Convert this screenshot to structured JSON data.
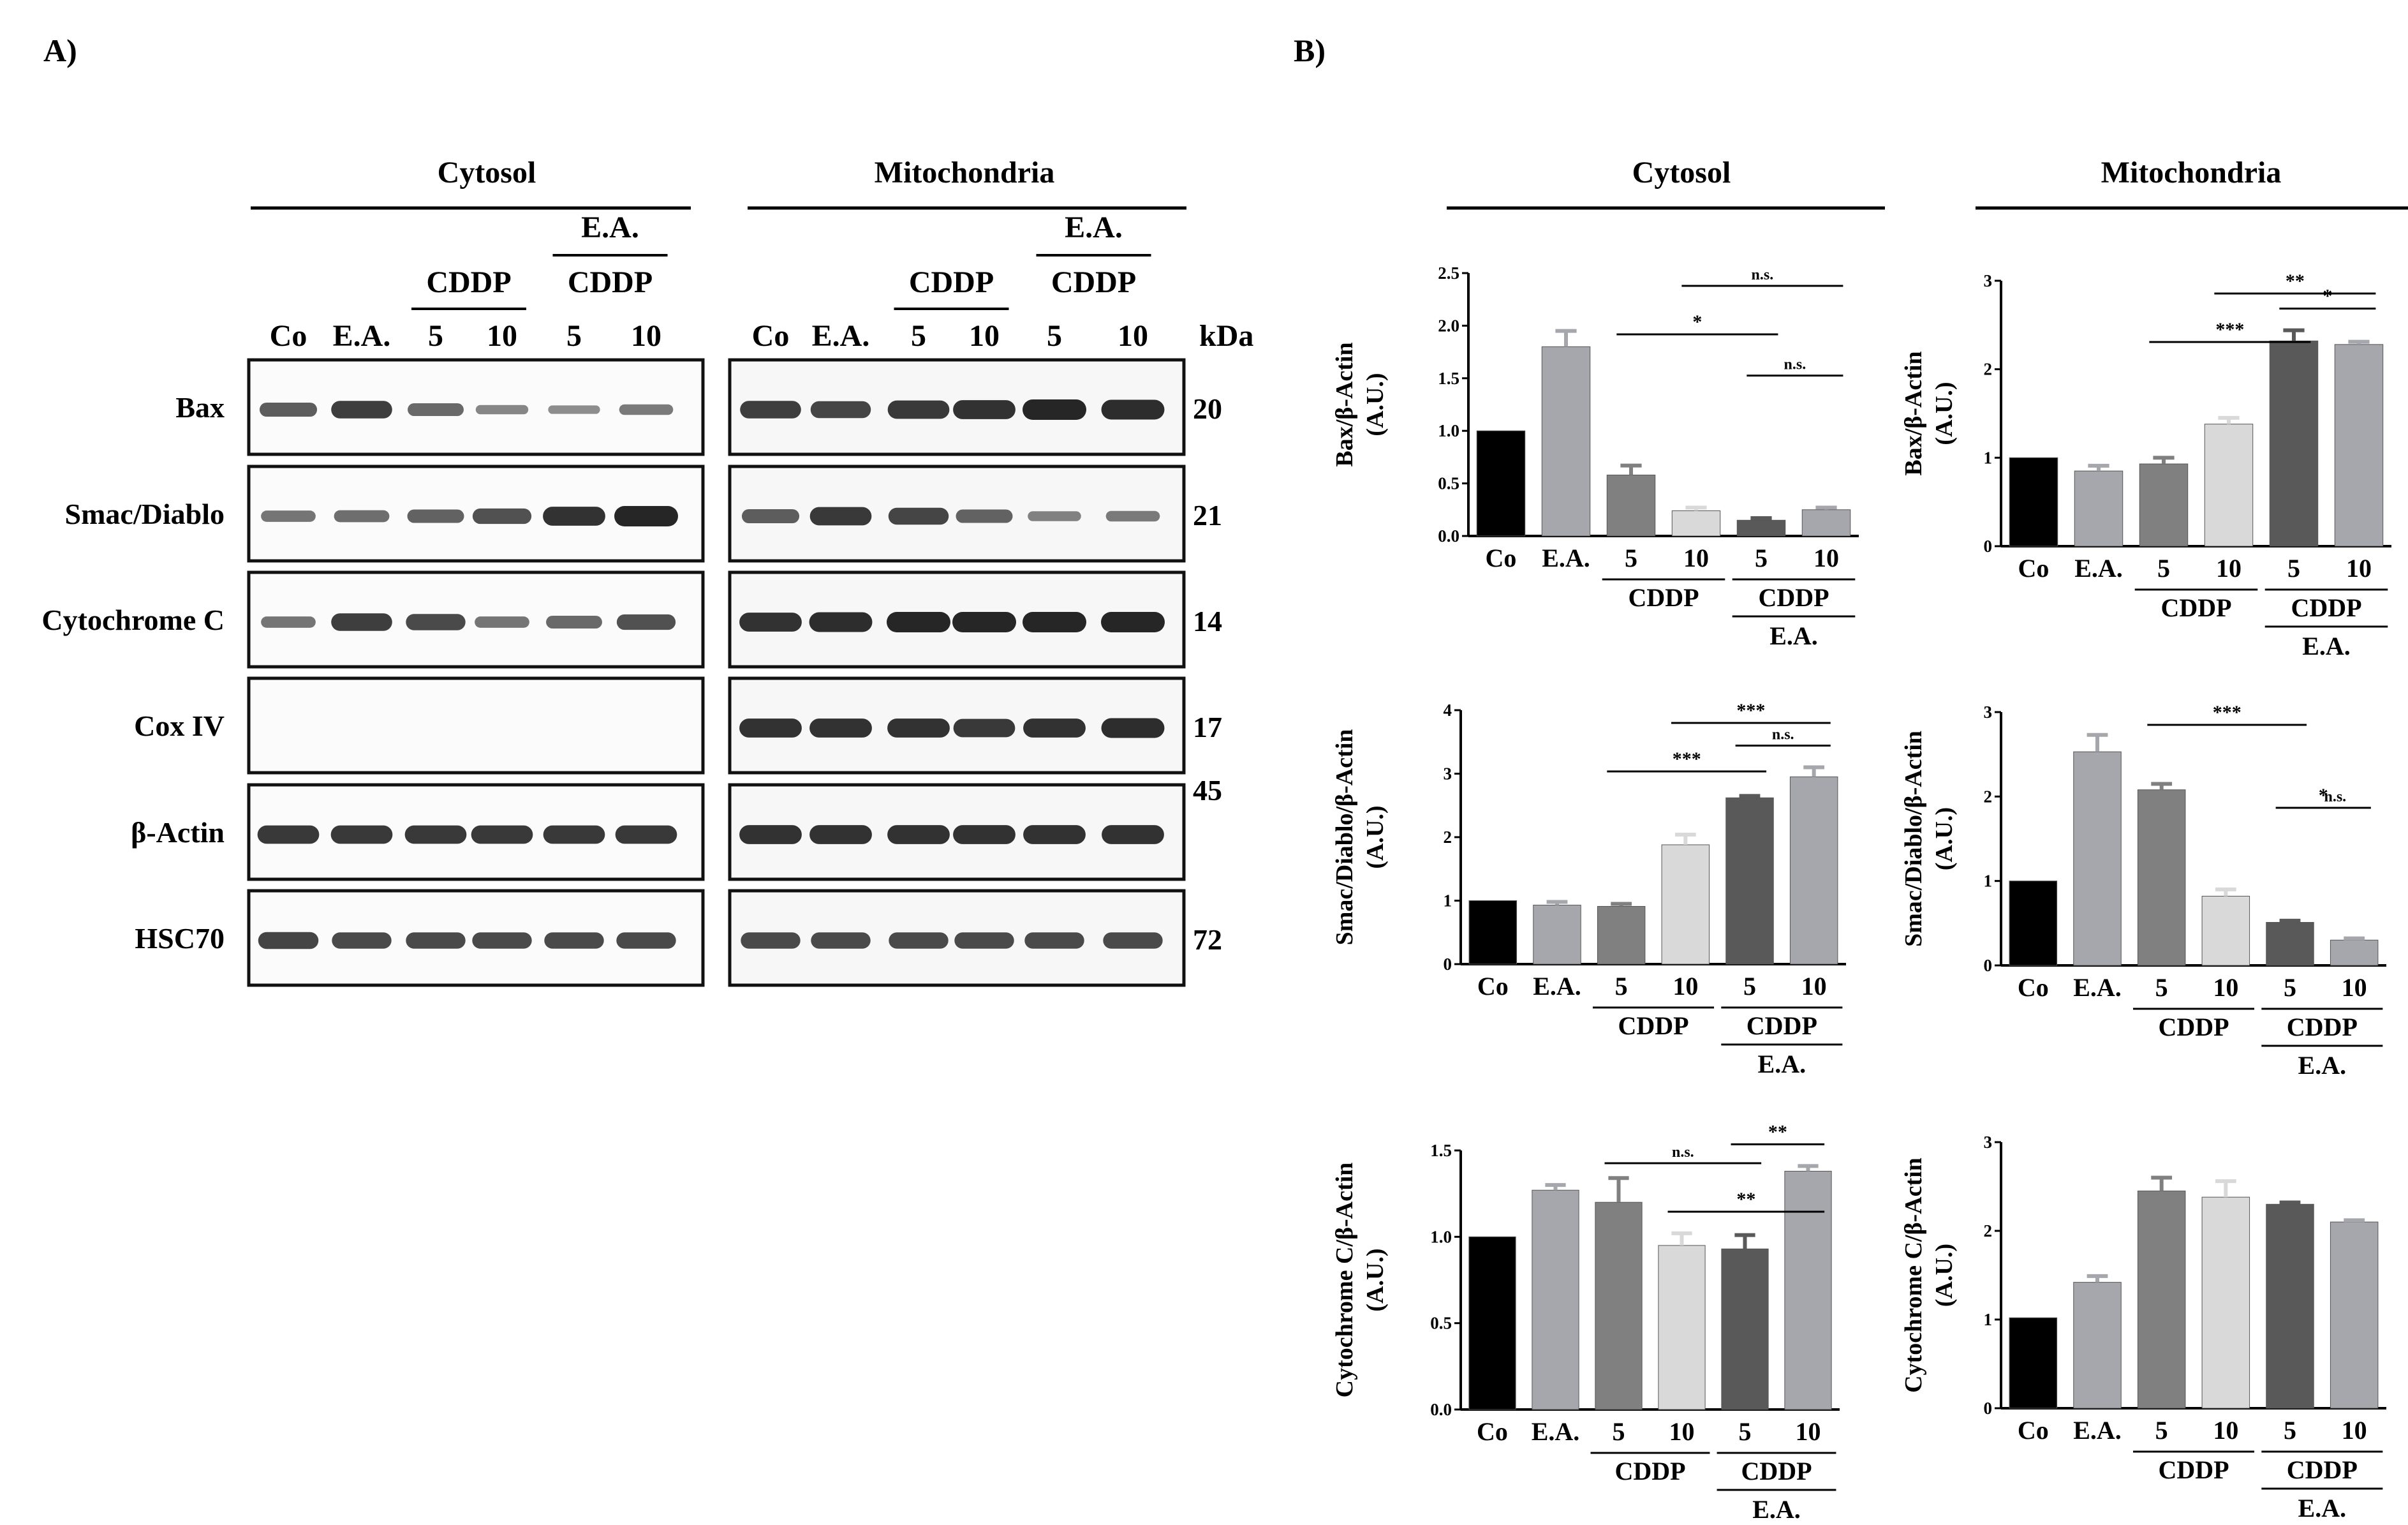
{
  "panels": {
    "a": "A)",
    "b": "B)"
  },
  "headers": {
    "cytosol": "Cytosol",
    "mito": "Mitochondria"
  },
  "blot": {
    "ea_label": "E.A.",
    "cddp_label": "CDDP",
    "lanes": [
      "Co",
      "E.A.",
      "5",
      "10",
      "5",
      "10"
    ],
    "kda_label": "kDa",
    "proteins": [
      {
        "name": "Bax",
        "kda": "20",
        "cyto": [
          0.55,
          0.8,
          0.45,
          0.2,
          0.15,
          0.3
        ],
        "mito": [
          0.8,
          0.75,
          0.85,
          0.9,
          1.0,
          0.95
        ]
      },
      {
        "name": "Smac/Diablo",
        "kda": "21",
        "cyto": [
          0.35,
          0.4,
          0.5,
          0.65,
          0.9,
          1.0
        ],
        "mito": [
          0.55,
          0.85,
          0.75,
          0.5,
          0.25,
          0.3
        ]
      },
      {
        "name": "Cytochrome C",
        "kda": "14",
        "cyto": [
          0.35,
          0.8,
          0.7,
          0.35,
          0.45,
          0.65
        ],
        "mito": [
          0.9,
          0.95,
          1.0,
          1.0,
          1.0,
          1.0
        ]
      },
      {
        "name": "Cox IV",
        "kda": "17",
        "cyto": [
          0,
          0,
          0,
          0,
          0,
          0
        ],
        "mito": [
          0.9,
          0.9,
          0.9,
          0.85,
          0.9,
          0.95
        ]
      },
      {
        "name": "β-Actin",
        "kda": "45",
        "cyto": [
          0.85,
          0.85,
          0.85,
          0.85,
          0.85,
          0.85
        ],
        "mito": [
          0.9,
          0.9,
          0.9,
          0.9,
          0.9,
          0.9
        ]
      },
      {
        "name": "HSC70",
        "kda": "72",
        "cyto": [
          0.75,
          0.7,
          0.7,
          0.7,
          0.7,
          0.7
        ],
        "mito": [
          0.7,
          0.7,
          0.7,
          0.7,
          0.7,
          0.7
        ]
      }
    ]
  },
  "chart_data": [
    {
      "type": "bar",
      "compartment": "Cytosol",
      "categories": [
        "Co",
        "E.A.",
        "5",
        "10",
        "5",
        "10"
      ],
      "values": [
        1.0,
        1.8,
        0.58,
        0.24,
        0.15,
        0.25
      ],
      "errors": [
        0,
        0.15,
        0.09,
        0.03,
        0.02,
        0.02
      ],
      "ylabel": "Bax/β-Actin",
      "yunit": "(A.U.)",
      "ylim": [
        0,
        2.5
      ],
      "yticks": [
        "0.0",
        "0.5",
        "1.0",
        "1.5",
        "2.0",
        "2.5"
      ],
      "group_labels": [
        "CDDP",
        "CDDP",
        "E.A."
      ],
      "significance": [
        {
          "from": 3,
          "to": 5,
          "label": "n.s."
        },
        {
          "from": 2,
          "to": 4,
          "label": "*"
        },
        {
          "from": 4,
          "to": 5,
          "label": "n.s."
        }
      ]
    },
    {
      "type": "bar",
      "compartment": "Mitochondria",
      "categories": [
        "Co",
        "E.A.",
        "5",
        "10",
        "5",
        "10"
      ],
      "values": [
        1.0,
        0.85,
        0.93,
        1.38,
        2.32,
        2.28
      ],
      "errors": [
        0,
        0.06,
        0.07,
        0.07,
        0.12,
        0.03
      ],
      "ylabel": "Bax/β-Actin",
      "yunit": "(A.U.)",
      "ylim": [
        0,
        3
      ],
      "yticks": [
        "0",
        "1",
        "2",
        "3"
      ],
      "group_labels": [
        "CDDP",
        "CDDP",
        "E.A."
      ],
      "significance": [
        {
          "from": 3,
          "to": 5,
          "label": "**"
        },
        {
          "from": 2,
          "to": 4,
          "label": "***"
        },
        {
          "from": 4,
          "to": 5,
          "label": "*"
        }
      ]
    },
    {
      "type": "bar",
      "compartment": "Cytosol",
      "categories": [
        "Co",
        "E.A.",
        "5",
        "10",
        "5",
        "10"
      ],
      "values": [
        1.0,
        0.93,
        0.91,
        1.88,
        2.62,
        2.95
      ],
      "errors": [
        0,
        0.05,
        0.04,
        0.16,
        0.03,
        0.15
      ],
      "ylabel": "Smac/Diablo/β-Actin",
      "yunit": "(A.U.)",
      "ylim": [
        0,
        4
      ],
      "yticks": [
        "0",
        "1",
        "2",
        "3",
        "4"
      ],
      "group_labels": [
        "CDDP",
        "CDDP",
        "E.A."
      ],
      "significance": [
        {
          "from": 3,
          "to": 5,
          "label": "***"
        },
        {
          "from": 2,
          "to": 4,
          "label": "***"
        },
        {
          "from": 4,
          "to": 5,
          "label": "n.s."
        }
      ]
    },
    {
      "type": "bar",
      "compartment": "Mitochondria",
      "categories": [
        "Co",
        "E.A.",
        "5",
        "10",
        "5",
        "10"
      ],
      "values": [
        1.0,
        2.53,
        2.08,
        0.82,
        0.51,
        0.3
      ],
      "errors": [
        0,
        0.2,
        0.07,
        0.08,
        0.02,
        0.02
      ],
      "ylabel": "Smac/Diablo/β-Actin",
      "yunit": "(A.U.)",
      "ylim": [
        0,
        3
      ],
      "yticks": [
        "0",
        "1",
        "2",
        "3"
      ],
      "group_labels": [
        "CDDP",
        "CDDP",
        "E.A."
      ],
      "significance": [
        {
          "from": 2,
          "to": 4,
          "label": "***"
        },
        {
          "from": 4,
          "to": 5,
          "label": "*"
        },
        {
          "from": 4.5,
          "to": 5,
          "label": "n.s."
        }
      ]
    },
    {
      "type": "bar",
      "compartment": "Cytosol",
      "categories": [
        "Co",
        "E.A.",
        "5",
        "10",
        "5",
        "10"
      ],
      "values": [
        1.0,
        1.27,
        1.2,
        0.95,
        0.93,
        1.38
      ],
      "errors": [
        0,
        0.03,
        0.14,
        0.07,
        0.08,
        0.03
      ],
      "ylabel": "Cytochrome C/β-Actin",
      "yunit": "(A.U.)",
      "ylim": [
        0,
        1.5
      ],
      "yticks": [
        "0.0",
        "0.5",
        "1.0",
        "1.5"
      ],
      "group_labels": [
        "CDDP",
        "CDDP",
        "E.A."
      ],
      "significance": [
        {
          "from": 2,
          "to": 4,
          "label": "n.s."
        },
        {
          "from": 3,
          "to": 5,
          "label": "**"
        },
        {
          "from": 4,
          "to": 5,
          "label": "**"
        }
      ]
    },
    {
      "type": "bar",
      "compartment": "Mitochondria",
      "categories": [
        "Co",
        "E.A.",
        "5",
        "10",
        "5",
        "10"
      ],
      "values": [
        1.02,
        1.42,
        2.45,
        2.38,
        2.3,
        2.1
      ],
      "errors": [
        0,
        0.07,
        0.15,
        0.18,
        0.02,
        0.02
      ],
      "ylabel": "Cytochrome C/β-Actin",
      "yunit": "(A.U.)",
      "ylim": [
        0,
        3
      ],
      "yticks": [
        "0",
        "1",
        "2",
        "3"
      ],
      "group_labels": [
        "CDDP",
        "CDDP",
        "E.A."
      ],
      "significance": []
    }
  ],
  "colors": {
    "bars": [
      "#000000",
      "#a6a6ad",
      "#808080",
      "#d9d9d9",
      "#595959",
      "#a6a6ad"
    ]
  }
}
